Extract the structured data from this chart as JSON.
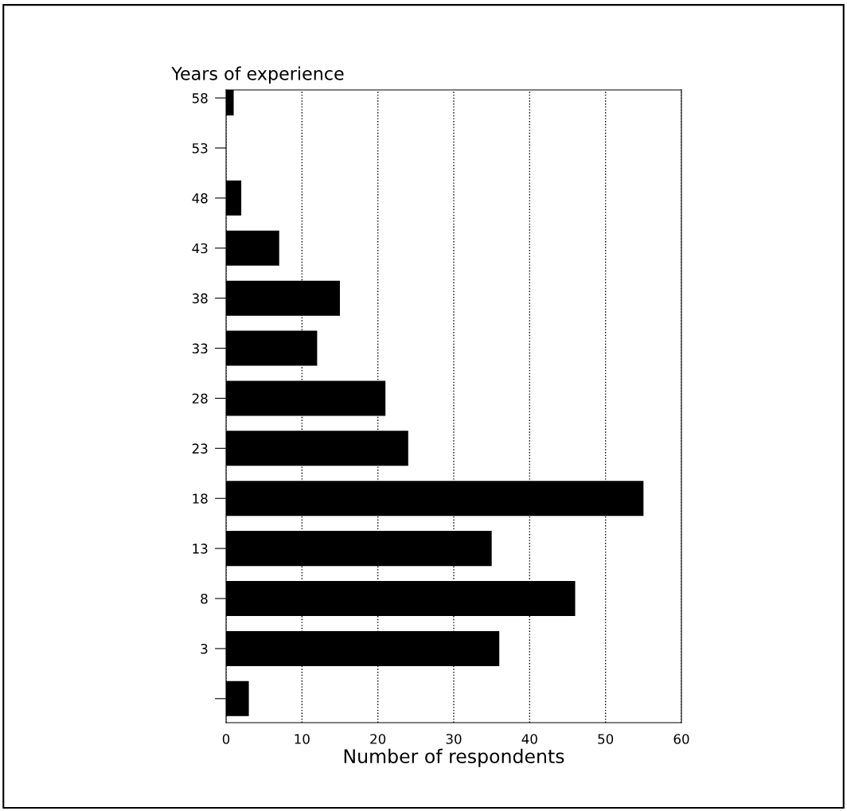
{
  "chart_data": {
    "type": "bar",
    "orientation": "horizontal",
    "ylabel": "Years of experience",
    "xlabel": "Number of respondents",
    "categories": [
      "58",
      "53",
      "48",
      "43",
      "38",
      "33",
      "28",
      "23",
      "18",
      "13",
      "8",
      "3",
      null
    ],
    "values": [
      1,
      0,
      2,
      7,
      15,
      12,
      21,
      24,
      55,
      35,
      46,
      36,
      3
    ],
    "color": "#000000",
    "xlim": [
      0,
      60
    ],
    "xticks": [
      0,
      10,
      20,
      30,
      40,
      50,
      60
    ],
    "grid": "x",
    "legend": false
  }
}
